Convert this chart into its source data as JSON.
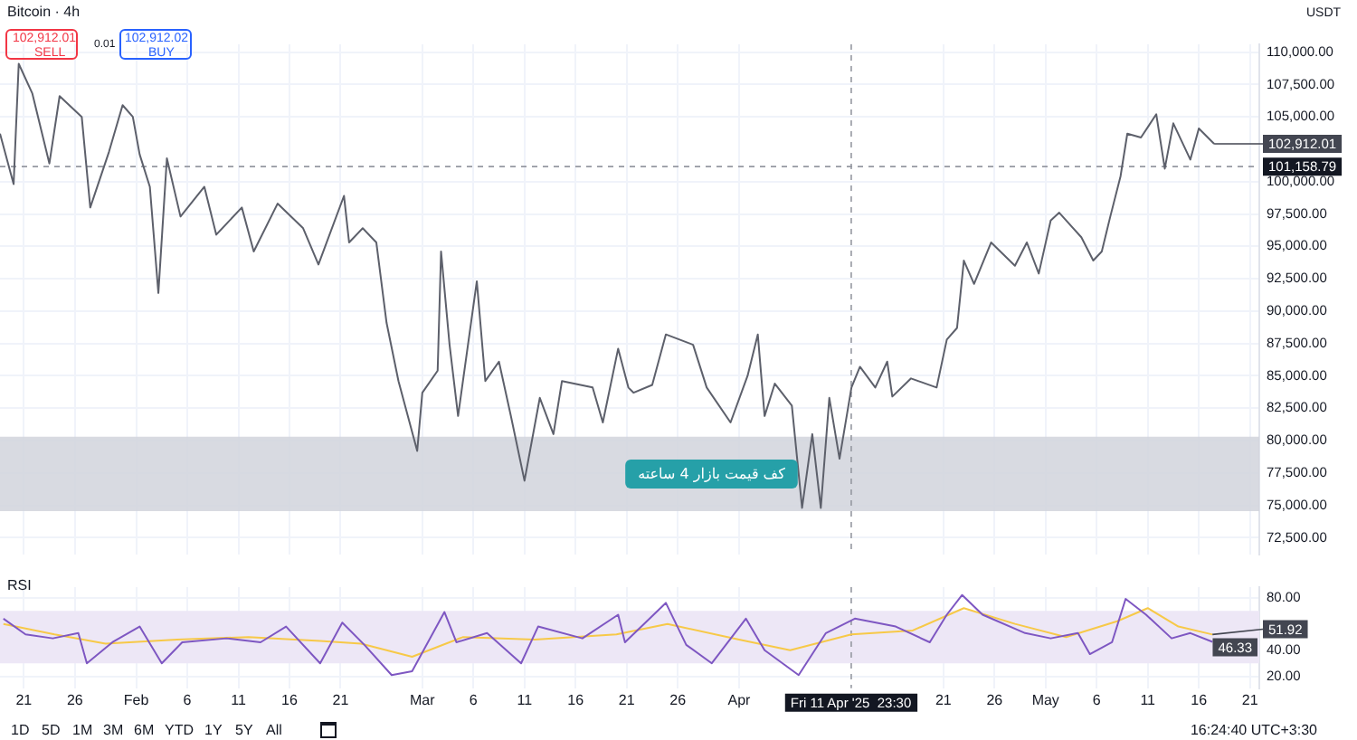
{
  "chart_data": [
    {
      "type": "line",
      "title": "Bitcoin · 4h",
      "tick_labels": "y",
      "grid": true,
      "legend": false,
      "xlim": [
        "2025-01-18T16:00",
        "2025-05-21T22:00"
      ],
      "xticks": [
        {
          "value": "2025-01-21",
          "label": null
        },
        {
          "value": "2025-01-26",
          "label": null
        },
        {
          "value": "2025-02-01",
          "label": null
        },
        {
          "value": "2025-02-06",
          "label": null
        },
        {
          "value": "2025-02-11",
          "label": null
        },
        {
          "value": "2025-02-16",
          "label": null
        },
        {
          "value": "2025-02-21",
          "label": null
        },
        {
          "value": "2025-03-01",
          "label": null
        },
        {
          "value": "2025-03-06",
          "label": null
        },
        {
          "value": "2025-03-11",
          "label": null
        },
        {
          "value": "2025-03-16",
          "label": null
        },
        {
          "value": "2025-03-21",
          "label": null
        },
        {
          "value": "2025-03-26",
          "label": null
        },
        {
          "value": "2025-04-01",
          "label": null
        },
        {
          "value": "2025-04-21",
          "label": null
        },
        {
          "value": "2025-04-26",
          "label": null
        },
        {
          "value": "2025-05-01",
          "label": null
        },
        {
          "value": "2025-05-06",
          "label": null
        },
        {
          "value": "2025-05-11",
          "label": null
        },
        {
          "value": "2025-05-16",
          "label": null
        },
        {
          "value": "2025-05-21",
          "label": null
        }
      ],
      "ylim": [
        71200,
        110600
      ],
      "yticks": [
        {
          "value": 72500,
          "label": "72,500.00"
        },
        {
          "value": 75000,
          "label": "75,000.00"
        },
        {
          "value": 77500,
          "label": "77,500.00"
        },
        {
          "value": 80000,
          "label": "80,000.00"
        },
        {
          "value": 82500,
          "label": "82,500.00"
        },
        {
          "value": 85000,
          "label": "85,000.00"
        },
        {
          "value": 87500,
          "label": "87,500.00"
        },
        {
          "value": 90000,
          "label": "90,000.00"
        },
        {
          "value": 92500,
          "label": "92,500.00"
        },
        {
          "value": 95000,
          "label": "95,000.00"
        },
        {
          "value": 97500,
          "label": "97,500.00"
        },
        {
          "value": 100000,
          "label": "100,000.00"
        },
        {
          "value": 105000,
          "label": "105,000.00"
        },
        {
          "value": 107500,
          "label": "107,500.00"
        },
        {
          "value": 110000,
          "label": "110,000.00"
        }
      ],
      "series": [
        {
          "color": "#5d606b",
          "x": [
            "2025-01-18T16:00",
            "2025-01-20T00:00",
            "2025-01-20T12:00",
            "2025-01-21T20:00",
            "2025-01-23T12:00",
            "2025-01-24T12:00",
            "2025-01-26T16:00",
            "2025-01-27T12:00",
            "2025-01-29T08:00",
            "2025-01-30T16:00",
            "2025-01-31T16:00",
            "2025-02-01T08:00",
            "2025-02-02T08:00",
            "2025-02-03T04:00",
            "2025-02-04T00:00",
            "2025-02-05T08:00",
            "2025-02-07T16:00",
            "2025-02-08T20:00",
            "2025-02-11T08:00",
            "2025-02-12T12:00",
            "2025-02-14T20:00",
            "2025-02-17T08:00",
            "2025-02-18T20:00",
            "2025-02-21T08:00",
            "2025-02-21T20:00",
            "2025-02-23T04:00",
            "2025-02-24T12:00",
            "2025-02-25T12:00",
            "2025-02-26T16:00",
            "2025-02-28T12:00",
            "2025-03-01T00:00",
            "2025-03-02T12:00",
            "2025-03-02T20:00",
            "2025-03-03T16:00",
            "2025-03-04T12:00",
            "2025-03-06T08:00",
            "2025-03-07T04:00",
            "2025-03-08T12:00",
            "2025-03-09T16:00",
            "2025-03-11T00:00",
            "2025-03-12T12:00",
            "2025-03-13T20:00",
            "2025-03-14T16:00",
            "2025-03-17T16:00",
            "2025-03-18T16:00",
            "2025-03-20T04:00",
            "2025-03-21T04:00",
            "2025-03-21T16:00",
            "2025-03-23T12:00",
            "2025-03-24T20:00",
            "2025-03-27T12:00",
            "2025-03-28T20:00",
            "2025-03-31T04:00",
            "2025-04-01T20:00",
            "2025-04-02T20:00",
            "2025-04-03T12:00",
            "2025-04-04T12:00",
            "2025-04-06T04:00",
            "2025-04-07T04:00",
            "2025-04-08T04:00",
            "2025-04-09T00:00",
            "2025-04-09T20:00",
            "2025-04-10T20:00",
            "2025-04-12T00:00",
            "2025-04-12T20:00",
            "2025-04-14T08:00",
            "2025-04-15T12:00",
            "2025-04-16T00:00",
            "2025-04-17T20:00",
            "2025-04-20T08:00",
            "2025-04-21T08:00",
            "2025-04-22T08:00",
            "2025-04-23T00:00",
            "2025-04-24T00:00",
            "2025-04-25T16:00",
            "2025-04-28T00:00",
            "2025-04-29T04:00",
            "2025-04-30T08:00",
            "2025-05-01T12:00",
            "2025-05-02T08:00",
            "2025-05-04T12:00",
            "2025-05-05T16:00",
            "2025-05-06T12:00",
            "2025-05-07T08:00",
            "2025-05-08T08:00",
            "2025-05-09T00:00",
            "2025-05-10T08:00",
            "2025-05-11T20:00",
            "2025-05-12T16:00",
            "2025-05-13T12:00",
            "2025-05-15T04:00",
            "2025-05-16T00:00",
            "2025-05-17T12:00"
          ],
          "values": [
            103700,
            99800,
            109100,
            106800,
            101400,
            106600,
            105000,
            98000,
            102300,
            105900,
            105000,
            102100,
            99600,
            91400,
            101800,
            97300,
            99600,
            95900,
            98000,
            94600,
            98300,
            96400,
            93600,
            98900,
            95300,
            96400,
            95300,
            89100,
            84600,
            79200,
            83700,
            85400,
            94600,
            87400,
            81900,
            92300,
            84600,
            86100,
            81900,
            76900,
            83300,
            80500,
            84600,
            84100,
            81400,
            87100,
            84100,
            83700,
            84300,
            88200,
            87400,
            84100,
            81400,
            85000,
            88200,
            81900,
            84400,
            82700,
            74800,
            80500,
            74800,
            83300,
            78600,
            84100,
            85700,
            84100,
            86100,
            83400,
            84800,
            84100,
            87800,
            88700,
            93900,
            92100,
            95300,
            93500,
            95300,
            92900,
            97000,
            97600,
            95700,
            93900,
            94600,
            97300,
            100400,
            103700,
            103400,
            105200,
            101000,
            104500,
            101700,
            104100,
            102912.01
          ]
        }
      ],
      "ref_lines": [
        {
          "axis": "x",
          "value": "2025-04-11T23:30"
        },
        {
          "axis": "y",
          "value": 101158.79,
          "label": "101,158.79"
        }
      ],
      "bands": [
        {
          "axis": "y",
          "from": 74550,
          "to": 80300,
          "label": "کف قیمت بازار 4 ساعته",
          "color": "#d1d4dc"
        }
      ],
      "annotations": [
        "102,912.01",
        "SELL",
        "0.01",
        "102,912.02",
        "BUY",
        "USDT",
        {
          "text": "102,912.01",
          "x": "2025-05-17T12:00",
          "y": 102912.01
        }
      ]
    },
    {
      "type": "line",
      "title": "RSI",
      "grid": true,
      "legend": false,
      "xlim": [
        "2025-01-18T16:00",
        "2025-05-21T22:00"
      ],
      "xticks": [
        {
          "value": "2025-01-21",
          "label": "21"
        },
        {
          "value": "2025-01-26",
          "label": "26"
        },
        {
          "value": "2025-02-01",
          "label": "Feb"
        },
        {
          "value": "2025-02-06",
          "label": "6"
        },
        {
          "value": "2025-02-11",
          "label": "11"
        },
        {
          "value": "2025-02-16",
          "label": "16"
        },
        {
          "value": "2025-02-21",
          "label": "21"
        },
        {
          "value": "2025-03-01",
          "label": "Mar"
        },
        {
          "value": "2025-03-06",
          "label": "6"
        },
        {
          "value": "2025-03-11",
          "label": "11"
        },
        {
          "value": "2025-03-16",
          "label": "16"
        },
        {
          "value": "2025-03-21",
          "label": "21"
        },
        {
          "value": "2025-03-26",
          "label": "26"
        },
        {
          "value": "2025-04-01",
          "label": "Apr"
        },
        {
          "value": "2025-04-21",
          "label": "21"
        },
        {
          "value": "2025-04-26",
          "label": "26"
        },
        {
          "value": "2025-05-01",
          "label": "May"
        },
        {
          "value": "2025-05-06",
          "label": "6"
        },
        {
          "value": "2025-05-11",
          "label": "11"
        },
        {
          "value": "2025-05-16",
          "label": "16"
        },
        {
          "value": "2025-05-21",
          "label": "21"
        }
      ],
      "ylim": [
        11,
        88
      ],
      "yticks": [
        {
          "value": 20,
          "label": "20.00"
        },
        {
          "value": 40,
          "label": "40.00"
        },
        {
          "value": 80,
          "label": "80.00"
        }
      ],
      "series": [
        {
          "color": "#7e57c2",
          "x": [
            "2025-01-19T00:00",
            "2025-01-21T04:00",
            "2025-01-23T20:00",
            "2025-01-26T08:00",
            "2025-01-27T04:00",
            "2025-01-29T16:00",
            "2025-02-01T08:00",
            "2025-02-03T12:00",
            "2025-02-05T12:00",
            "2025-02-09T20:00",
            "2025-02-13T04:00",
            "2025-02-15T16:00",
            "2025-02-19T00:00",
            "2025-02-21T04:00",
            "2025-02-23T08:00",
            "2025-02-26T00:00",
            "2025-02-28T00:00",
            "2025-03-03T04:00",
            "2025-03-04T08:00",
            "2025-03-07T08:00",
            "2025-03-10T16:00",
            "2025-03-12T08:00",
            "2025-03-16T16:00",
            "2025-03-20T04:00",
            "2025-03-20T20:00",
            "2025-03-24T20:00",
            "2025-03-26T20:00",
            "2025-03-29T08:00",
            "2025-04-01T16:00",
            "2025-04-03T12:00",
            "2025-04-06T20:00",
            "2025-04-09T12:00",
            "2025-04-12T08:00",
            "2025-04-16T08:00",
            "2025-04-19T16:00",
            "2025-04-21T08:00",
            "2025-04-22T20:00",
            "2025-04-24T20:00",
            "2025-04-29T00:00",
            "2025-05-01T12:00",
            "2025-05-04T04:00",
            "2025-05-05T08:00",
            "2025-05-07T12:00",
            "2025-05-08T20:00",
            "2025-05-10T20:00",
            "2025-05-13T08:00",
            "2025-05-15T04:00",
            "2025-05-17T08:00"
          ],
          "values": [
            64,
            52,
            49,
            53,
            30,
            46,
            58,
            30,
            46,
            49,
            46,
            58,
            30,
            61,
            44,
            21,
            24,
            69,
            46,
            53,
            30,
            58,
            49,
            67,
            46,
            76,
            44,
            30,
            64,
            40,
            21,
            53,
            64,
            58,
            46,
            67,
            82,
            67,
            53,
            49,
            53,
            37,
            46,
            79,
            67,
            49,
            53,
            46.33
          ]
        },
        {
          "color": "#f7c948",
          "x": [
            "2025-01-19T00:00",
            "2025-01-24T00:00",
            "2025-01-29T00:00",
            "2025-02-05T00:00",
            "2025-02-12T00:00",
            "2025-02-19T00:00",
            "2025-02-23T00:00",
            "2025-02-28T00:00",
            "2025-03-05T00:00",
            "2025-03-12T00:00",
            "2025-03-20T00:00",
            "2025-03-25T00:00",
            "2025-04-01T00:00",
            "2025-04-06T00:00",
            "2025-04-12T00:00",
            "2025-04-18T00:00",
            "2025-04-23T00:00",
            "2025-04-28T00:00",
            "2025-05-03T00:00",
            "2025-05-08T00:00",
            "2025-05-11T00:00",
            "2025-05-14T00:00",
            "2025-05-17T08:00"
          ],
          "values": [
            60,
            52,
            45,
            48,
            50,
            47,
            45,
            35,
            50,
            48,
            52,
            60,
            48,
            40,
            52,
            55,
            72,
            60,
            50,
            62,
            72,
            58,
            51.92
          ]
        }
      ],
      "ref_lines": [
        {
          "axis": "x",
          "value": "2025-04-11T23:30",
          "label": "Fri 11 Apr '25  23:30"
        }
      ],
      "bands": [
        {
          "axis": "y",
          "from": 30,
          "to": 70,
          "color": "#ede7f6"
        }
      ],
      "annotations": [
        {
          "text": "51.92",
          "x": "2025-05-17T08:00",
          "y": 51.92
        },
        {
          "text": "46.33",
          "x": "2025-05-17T08:00",
          "y": 46.33
        },
        "1D",
        "5D",
        "1M",
        "3M",
        "6M",
        "YTD",
        "1Y",
        "5Y",
        "All",
        "16:24:40 UTC+3:30"
      ]
    }
  ]
}
